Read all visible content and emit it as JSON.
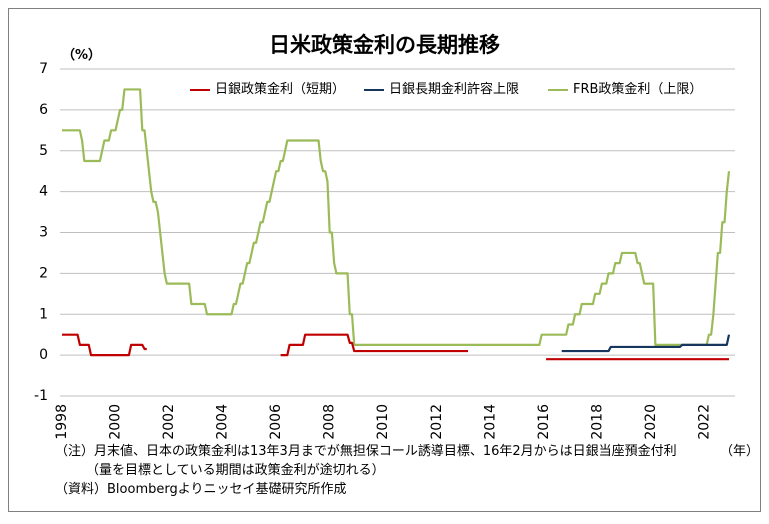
{
  "chart_data": {
    "type": "line",
    "title": "日米政策金利の長期推移",
    "ylabel": "（%）",
    "xlabel": "（年）",
    "ylim": [
      -1,
      7
    ],
    "xlim": [
      "1998-01",
      "2022-12"
    ],
    "y_ticks": [
      7,
      6,
      5,
      4,
      3,
      2,
      1,
      0,
      -1
    ],
    "x_ticks": [
      "1998",
      "2000",
      "2002",
      "2004",
      "2006",
      "2008",
      "2010",
      "2012",
      "2014",
      "2016",
      "2018",
      "2020",
      "2022"
    ],
    "grid": "horizontal",
    "legend": "top",
    "series": [
      {
        "name": "日銀政策金利（短期）",
        "color": "#C00000",
        "points": [
          [
            "1998-01",
            0.5
          ],
          [
            "1998-09",
            0.25
          ],
          [
            "1999-02",
            0
          ],
          [
            "2000-08",
            0.25
          ],
          [
            "2001-02",
            0.15
          ],
          [
            "2001-04",
            null
          ],
          [
            "2006-03",
            0
          ],
          [
            "2006-07",
            0.25
          ],
          [
            "2007-02",
            0.5
          ],
          [
            "2008-10",
            0.3
          ],
          [
            "2008-12",
            0.1
          ],
          [
            "2013-04",
            null
          ],
          [
            "2016-02",
            -0.1
          ]
        ]
      },
      {
        "name": "日銀長期金利許容上限",
        "color": "#17365D",
        "points": [
          [
            "2016-09",
            0.1
          ],
          [
            "2018-07",
            0.2
          ],
          [
            "2021-03",
            0.25
          ],
          [
            "2022-12",
            0.5
          ]
        ]
      },
      {
        "name": "FRB政策金利（上限）",
        "color": "#9BBB59",
        "points": [
          [
            "1998-01",
            5.5
          ],
          [
            "1998-10",
            5.25
          ],
          [
            "1998-11",
            4.75
          ],
          [
            "1999-07",
            5.0
          ],
          [
            "1999-08",
            5.25
          ],
          [
            "1999-11",
            5.5
          ],
          [
            "2000-02",
            5.75
          ],
          [
            "2000-03",
            6.0
          ],
          [
            "2000-05",
            6.5
          ],
          [
            "2001-01",
            5.5
          ],
          [
            "2001-03",
            5.0
          ],
          [
            "2001-04",
            4.5
          ],
          [
            "2001-05",
            4.0
          ],
          [
            "2001-06",
            3.75
          ],
          [
            "2001-08",
            3.5
          ],
          [
            "2001-09",
            3.0
          ],
          [
            "2001-10",
            2.5
          ],
          [
            "2001-11",
            2.0
          ],
          [
            "2001-12",
            1.75
          ],
          [
            "2002-11",
            1.25
          ],
          [
            "2003-06",
            1.0
          ],
          [
            "2004-06",
            1.25
          ],
          [
            "2004-08",
            1.5
          ],
          [
            "2004-09",
            1.75
          ],
          [
            "2004-11",
            2.0
          ],
          [
            "2004-12",
            2.25
          ],
          [
            "2005-02",
            2.5
          ],
          [
            "2005-03",
            2.75
          ],
          [
            "2005-05",
            3.0
          ],
          [
            "2005-06",
            3.25
          ],
          [
            "2005-08",
            3.5
          ],
          [
            "2005-09",
            3.75
          ],
          [
            "2005-11",
            4.0
          ],
          [
            "2005-12",
            4.25
          ],
          [
            "2006-01",
            4.5
          ],
          [
            "2006-03",
            4.75
          ],
          [
            "2006-05",
            5.0
          ],
          [
            "2006-06",
            5.25
          ],
          [
            "2007-09",
            4.75
          ],
          [
            "2007-10",
            4.5
          ],
          [
            "2007-12",
            4.25
          ],
          [
            "2008-01",
            3.0
          ],
          [
            "2008-03",
            2.25
          ],
          [
            "2008-04",
            2.0
          ],
          [
            "2008-10",
            1.0
          ],
          [
            "2008-12",
            0.25
          ],
          [
            "2015-12",
            0.5
          ],
          [
            "2016-12",
            0.75
          ],
          [
            "2017-03",
            1.0
          ],
          [
            "2017-06",
            1.25
          ],
          [
            "2017-12",
            1.5
          ],
          [
            "2018-03",
            1.75
          ],
          [
            "2018-06",
            2.0
          ],
          [
            "2018-09",
            2.25
          ],
          [
            "2018-12",
            2.5
          ],
          [
            "2019-07",
            2.25
          ],
          [
            "2019-09",
            2.0
          ],
          [
            "2019-10",
            1.75
          ],
          [
            "2020-03",
            0.25
          ],
          [
            "2022-03",
            0.5
          ],
          [
            "2022-05",
            1.0
          ],
          [
            "2022-06",
            1.75
          ],
          [
            "2022-07",
            2.5
          ],
          [
            "2022-09",
            3.25
          ],
          [
            "2022-11",
            4.0
          ],
          [
            "2022-12",
            4.5
          ]
        ]
      }
    ]
  },
  "notes": [
    "（注）月末値、日本の政策金利は13年3月までが無担保コール誘導目標、16年2月からは日銀当座預金付利",
    "（量を目標としている期間は政策金利が途切れる）",
    "（資料）Bloombergよりニッセイ基礎研究所作成"
  ]
}
